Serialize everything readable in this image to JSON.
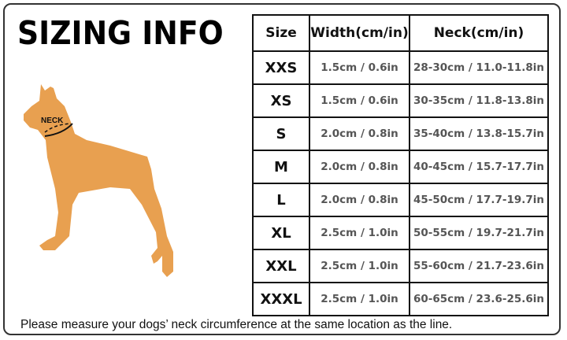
{
  "title": "SIZING INFO",
  "neck_label": "NECK",
  "dog_color": "#E8A050",
  "table": {
    "headers": [
      "Size",
      "Width(cm/in)",
      "Neck(cm/in)"
    ],
    "rows": [
      {
        "size": "XXS",
        "width": "1.5cm / 0.6in",
        "neck": "28-30cm / 11.0-11.8in"
      },
      {
        "size": "XS",
        "width": "1.5cm / 0.6in",
        "neck": "30-35cm / 11.8-13.8in"
      },
      {
        "size": "S",
        "width": "2.0cm / 0.8in",
        "neck": "35-40cm / 13.8-15.7in"
      },
      {
        "size": "M",
        "width": "2.0cm / 0.8in",
        "neck": "40-45cm / 15.7-17.7in"
      },
      {
        "size": "L",
        "width": "2.0cm / 0.8in",
        "neck": "45-50cm / 17.7-19.7in"
      },
      {
        "size": "XL",
        "width": "2.5cm / 1.0in",
        "neck": "50-55cm / 19.7-21.7in"
      },
      {
        "size": "XXL",
        "width": "2.5cm / 1.0in",
        "neck": "55-60cm / 21.7-23.6in"
      },
      {
        "size": "XXXL",
        "width": "2.5cm / 1.0in",
        "neck": "60-65cm / 23.6-25.6in"
      }
    ]
  },
  "note": "Please measure your dogs’  neck circumference at the same location as the line."
}
